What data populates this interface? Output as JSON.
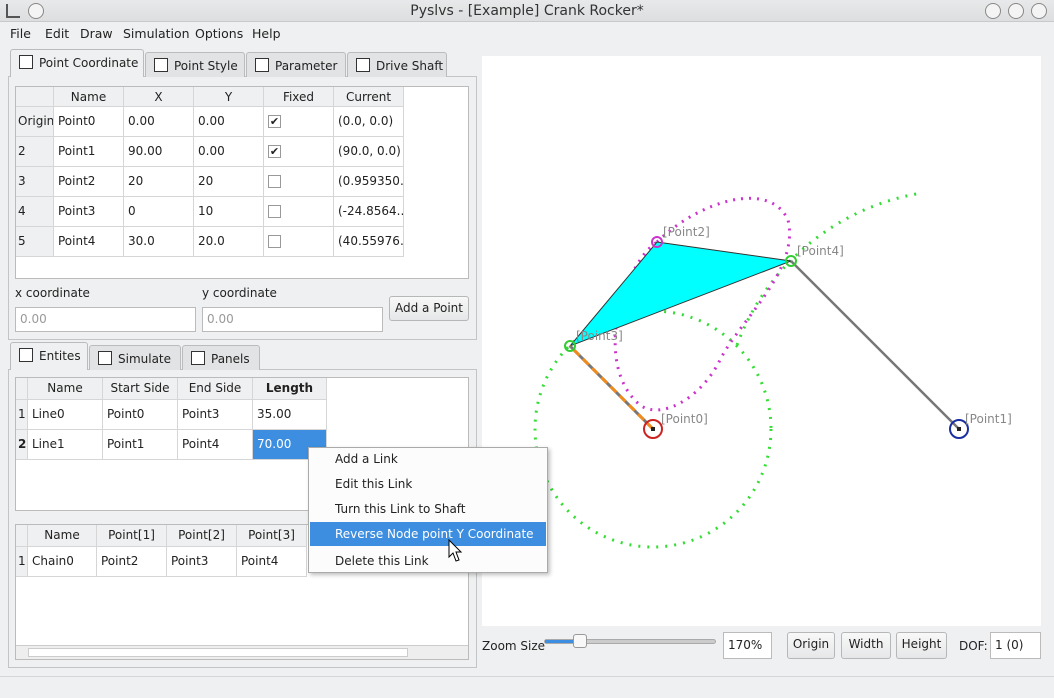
{
  "window": {
    "title": "Pyslvs - [Example] Crank Rocker*"
  },
  "menu": [
    "File",
    "Edit",
    "Draw",
    "Simulation",
    "Options",
    "Help"
  ],
  "point_tabs": [
    "Point Coordinate",
    "Point Style",
    "Parameter",
    "Drive Shaft"
  ],
  "point_table": {
    "headers": [
      "Name",
      "X",
      "Y",
      "Fixed",
      "Current"
    ],
    "rows": [
      {
        "index": "Origin",
        "name": "Point0",
        "x": "0.00",
        "y": "0.00",
        "fixed": true,
        "current": "(0.0, 0.0)"
      },
      {
        "index": "2",
        "name": "Point1",
        "x": "90.00",
        "y": "0.00",
        "fixed": true,
        "current": "(90.0, 0.0)"
      },
      {
        "index": "3",
        "name": "Point2",
        "x": "20",
        "y": "20",
        "fixed": false,
        "current": "(0.959350..."
      },
      {
        "index": "4",
        "name": "Point3",
        "x": "0",
        "y": "10",
        "fixed": false,
        "current": "(-24.8564..."
      },
      {
        "index": "5",
        "name": "Point4",
        "x": "30.0",
        "y": "20.0",
        "fixed": false,
        "current": "(40.55976..."
      }
    ]
  },
  "coordinate_input": {
    "x_label": "x coordinate",
    "x_placeholder": "0.00",
    "y_label": "y coordinate",
    "y_placeholder": "0.00",
    "button": "Add a Point"
  },
  "entity_tabs": [
    "Entites",
    "Simulate",
    "Panels"
  ],
  "link_table": {
    "headers": [
      "Name",
      "Start Side",
      "End Side",
      "Length"
    ],
    "rows": [
      {
        "index": "1",
        "name": "Line0",
        "start": "Point0",
        "end": "Point3",
        "length": "35.00"
      },
      {
        "index": "2",
        "name": "Line1",
        "start": "Point1",
        "end": "Point4",
        "length": "70.00"
      }
    ]
  },
  "context_menu": [
    "Add a Link",
    "Edit this Link",
    "Turn this Link to Shaft",
    "Reverse Node point Y Coordinate",
    "Delete this Link"
  ],
  "chain_table": {
    "headers": [
      "Name",
      "Point[1]",
      "Point[2]",
      "Point[3]"
    ],
    "rows": [
      {
        "index": "1",
        "name": "Chain0",
        "p1": "Point2",
        "p2": "Point3",
        "p3": "Point4"
      }
    ]
  },
  "canvas": {
    "labels": [
      "[Point0]",
      "[Point1]",
      "[Point2]",
      "[Point3]",
      "[Point4]"
    ]
  },
  "bottom_bar": {
    "zoom_label": "Zoom Size",
    "zoom": "170%",
    "buttons": [
      "Origin",
      "Width",
      "Height"
    ],
    "dof_label": "DOF:",
    "dof": "1 (0)"
  }
}
